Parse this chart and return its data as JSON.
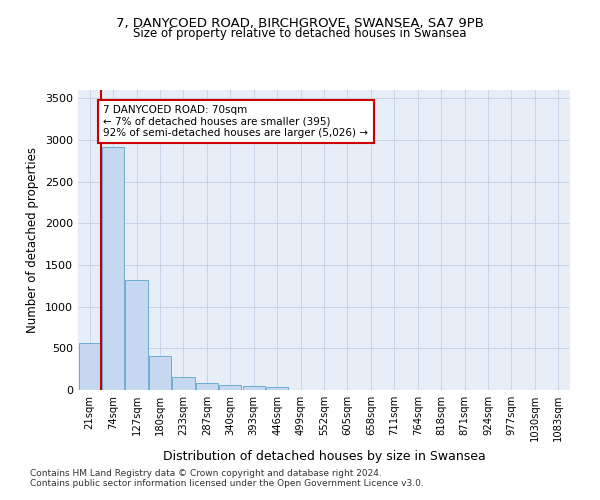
{
  "title1": "7, DANYCOED ROAD, BIRCHGROVE, SWANSEA, SA7 9PB",
  "title2": "Size of property relative to detached houses in Swansea",
  "xlabel": "Distribution of detached houses by size in Swansea",
  "ylabel": "Number of detached properties",
  "footnote1": "Contains HM Land Registry data © Crown copyright and database right 2024.",
  "footnote2": "Contains public sector information licensed under the Open Government Licence v3.0.",
  "bar_labels": [
    "21sqm",
    "74sqm",
    "127sqm",
    "180sqm",
    "233sqm",
    "287sqm",
    "340sqm",
    "393sqm",
    "446sqm",
    "499sqm",
    "552sqm",
    "605sqm",
    "658sqm",
    "711sqm",
    "764sqm",
    "818sqm",
    "871sqm",
    "924sqm",
    "977sqm",
    "1030sqm",
    "1083sqm"
  ],
  "bar_values": [
    570,
    2920,
    1320,
    410,
    155,
    80,
    55,
    45,
    40,
    0,
    0,
    0,
    0,
    0,
    0,
    0,
    0,
    0,
    0,
    0,
    0
  ],
  "bar_color": "#c5d8f0",
  "bar_edge_color": "#6baed6",
  "grid_color": "#c8d4e8",
  "background_color": "#e8eef8",
  "vline_x": 0.5,
  "vline_color": "#cc0000",
  "annotation_text": "7 DANYCOED ROAD: 70sqm\n← 7% of detached houses are smaller (395)\n92% of semi-detached houses are larger (5,026) →",
  "annotation_box_color": "#ffffff",
  "annotation_box_edge": "#cc0000",
  "ylim": [
    0,
    3600
  ],
  "yticks": [
    0,
    500,
    1000,
    1500,
    2000,
    2500,
    3000,
    3500
  ]
}
